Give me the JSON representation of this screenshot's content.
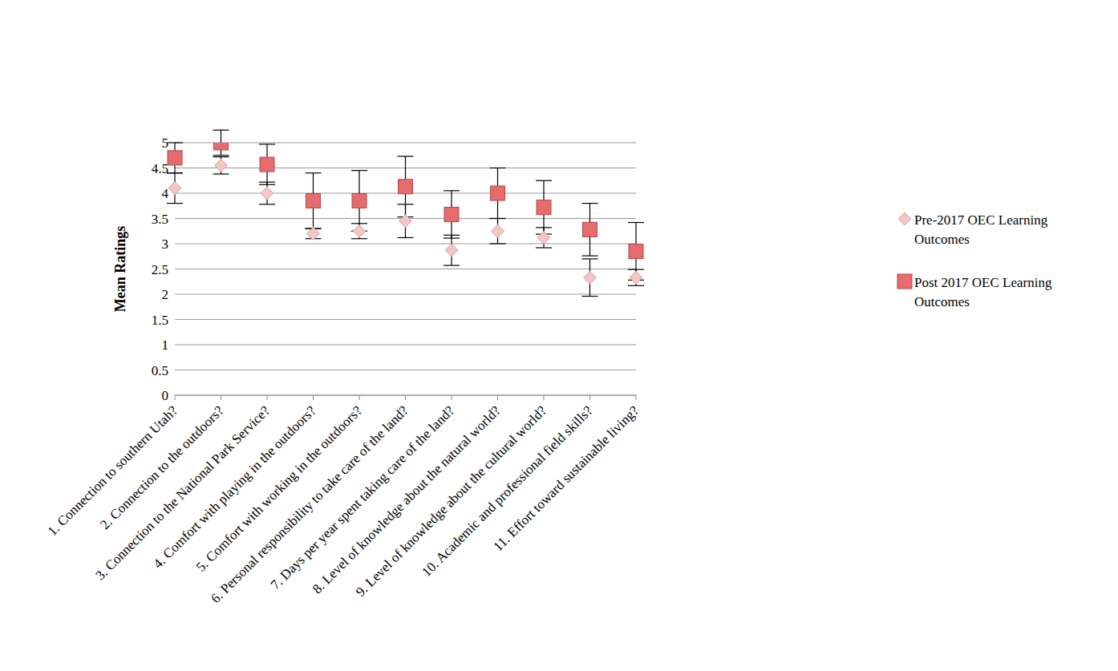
{
  "chart_data": {
    "type": "scatter",
    "y_label": "Mean Ratings",
    "categories": [
      "1. Connection to southern Utah?",
      "2. Connection to the outdoors?",
      "3. Connection to the National Park Service?",
      "4. Comfort with playing in the outdoors?",
      "5. Comfort with working in the outdoors?",
      "6. Personal responsibility to take care of the land?",
      "7. Days per year spent taking care of the land?",
      "8. Level of knowledge about the natural world?",
      "9. Level of knowledge about the cultural world?",
      "10. Academic and professional field skills?",
      "11. Effort toward sustainable living?"
    ],
    "series": [
      {
        "name": "Pre-2017 OEC Learning Outcomes",
        "color": "#f2c6c4",
        "marker": "diamond",
        "values": [
          4.1,
          4.55,
          4.0,
          3.2,
          3.25,
          3.45,
          2.87,
          3.25,
          3.12,
          2.33,
          2.33
        ],
        "error": [
          0.3,
          0.17,
          0.22,
          0.1,
          0.15,
          0.33,
          0.3,
          0.25,
          0.2,
          0.37,
          0.16
        ]
      },
      {
        "name": "Post 2017 OEC Learning Outcomes",
        "color": "#e46c6c",
        "marker": "square",
        "values": [
          4.7,
          5.0,
          4.57,
          3.85,
          3.85,
          4.13,
          3.58,
          4.0,
          3.72,
          3.28,
          2.85
        ],
        "error": [
          0.3,
          0.25,
          0.4,
          0.55,
          0.6,
          0.6,
          0.47,
          0.5,
          0.53,
          0.52,
          0.57
        ]
      }
    ],
    "ylim": [
      0,
      5
    ],
    "yticks": [
      0,
      0.5,
      1,
      1.5,
      2,
      2.5,
      3,
      3.5,
      4,
      4.5,
      5
    ],
    "grid": true,
    "legend": "right"
  }
}
